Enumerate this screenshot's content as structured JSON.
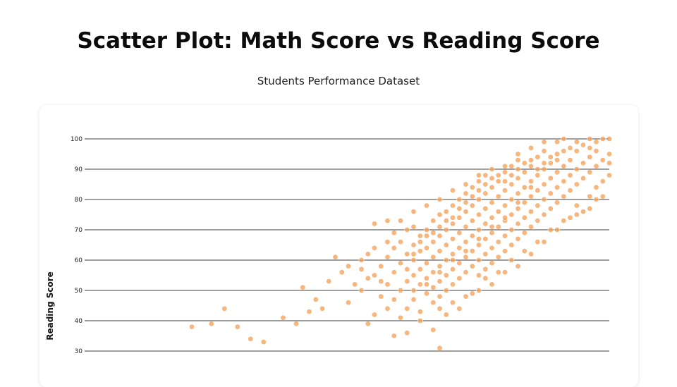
{
  "page": {
    "title": "Scatter Plot: Math Score vs Reading Score",
    "subtitle": "Students Performance Dataset"
  },
  "colors": {
    "point_fill": "#f4a259",
    "point_fill_dense": "#f08a2c",
    "grid": "#000000",
    "background": "#ffffff"
  },
  "chart_data": {
    "type": "scatter",
    "title": "Scatter Plot: Math Score vs Reading Score",
    "subtitle": "Students Performance Dataset",
    "xlabel": "",
    "ylabel": "Reading Score",
    "ylim": [
      30,
      100
    ],
    "yticks": [
      30,
      40,
      50,
      60,
      70,
      80,
      90,
      100
    ],
    "xlim": [
      20,
      100
    ],
    "grid": "horizontal",
    "points": [
      [
        36,
        38
      ],
      [
        39,
        39
      ],
      [
        41,
        44
      ],
      [
        43,
        38
      ],
      [
        45,
        34
      ],
      [
        47,
        33
      ],
      [
        50,
        41
      ],
      [
        52,
        39
      ],
      [
        53,
        51
      ],
      [
        54,
        43
      ],
      [
        55,
        47
      ],
      [
        56,
        44
      ],
      [
        57,
        53
      ],
      [
        58,
        61
      ],
      [
        59,
        56
      ],
      [
        60,
        46
      ],
      [
        60,
        58
      ],
      [
        61,
        52
      ],
      [
        62,
        50
      ],
      [
        62,
        60
      ],
      [
        63,
        39
      ],
      [
        63,
        62
      ],
      [
        64,
        42
      ],
      [
        64,
        55
      ],
      [
        64,
        64
      ],
      [
        65,
        48
      ],
      [
        65,
        58
      ],
      [
        66,
        44
      ],
      [
        66,
        52
      ],
      [
        66,
        61
      ],
      [
        67,
        47
      ],
      [
        67,
        56
      ],
      [
        67,
        64
      ],
      [
        68,
        41
      ],
      [
        68,
        50
      ],
      [
        68,
        59
      ],
      [
        68,
        66
      ],
      [
        69,
        44
      ],
      [
        69,
        53
      ],
      [
        69,
        62
      ],
      [
        69,
        70
      ],
      [
        70,
        47
      ],
      [
        70,
        55
      ],
      [
        70,
        60
      ],
      [
        70,
        65
      ],
      [
        70,
        71
      ],
      [
        71,
        43
      ],
      [
        71,
        52
      ],
      [
        71,
        57
      ],
      [
        71,
        63
      ],
      [
        71,
        68
      ],
      [
        72,
        49
      ],
      [
        72,
        54
      ],
      [
        72,
        59
      ],
      [
        72,
        64
      ],
      [
        72,
        70
      ],
      [
        73,
        46
      ],
      [
        73,
        51
      ],
      [
        73,
        56
      ],
      [
        73,
        61
      ],
      [
        73,
        66
      ],
      [
        73,
        73
      ],
      [
        74,
        48
      ],
      [
        74,
        53
      ],
      [
        74,
        58
      ],
      [
        74,
        63
      ],
      [
        74,
        68
      ],
      [
        74,
        75
      ],
      [
        75,
        50
      ],
      [
        75,
        55
      ],
      [
        75,
        60
      ],
      [
        75,
        65
      ],
      [
        75,
        70
      ],
      [
        75,
        76
      ],
      [
        76,
        52
      ],
      [
        76,
        57
      ],
      [
        76,
        62
      ],
      [
        76,
        67
      ],
      [
        76,
        72
      ],
      [
        76,
        78
      ],
      [
        77,
        54
      ],
      [
        77,
        59
      ],
      [
        77,
        64
      ],
      [
        77,
        69
      ],
      [
        77,
        74
      ],
      [
        77,
        80
      ],
      [
        78,
        56
      ],
      [
        78,
        61
      ],
      [
        78,
        66
      ],
      [
        78,
        71
      ],
      [
        78,
        76
      ],
      [
        78,
        82
      ],
      [
        79,
        58
      ],
      [
        79,
        63
      ],
      [
        79,
        68
      ],
      [
        79,
        73
      ],
      [
        79,
        78
      ],
      [
        79,
        84
      ],
      [
        80,
        55
      ],
      [
        80,
        60
      ],
      [
        80,
        65
      ],
      [
        80,
        70
      ],
      [
        80,
        75
      ],
      [
        80,
        80
      ],
      [
        80,
        86
      ],
      [
        81,
        57
      ],
      [
        81,
        62
      ],
      [
        81,
        67
      ],
      [
        81,
        72
      ],
      [
        81,
        77
      ],
      [
        81,
        82
      ],
      [
        81,
        88
      ],
      [
        82,
        59
      ],
      [
        82,
        64
      ],
      [
        82,
        69
      ],
      [
        82,
        74
      ],
      [
        82,
        79
      ],
      [
        82,
        84
      ],
      [
        82,
        90
      ],
      [
        83,
        61
      ],
      [
        83,
        66
      ],
      [
        83,
        71
      ],
      [
        83,
        76
      ],
      [
        83,
        81
      ],
      [
        83,
        86
      ],
      [
        84,
        63
      ],
      [
        84,
        68
      ],
      [
        84,
        73
      ],
      [
        84,
        78
      ],
      [
        84,
        83
      ],
      [
        84,
        89
      ],
      [
        85,
        65
      ],
      [
        85,
        70
      ],
      [
        85,
        75
      ],
      [
        85,
        80
      ],
      [
        85,
        85
      ],
      [
        85,
        91
      ],
      [
        86,
        67
      ],
      [
        86,
        72
      ],
      [
        86,
        77
      ],
      [
        86,
        82
      ],
      [
        86,
        87
      ],
      [
        86,
        93
      ],
      [
        87,
        69
      ],
      [
        87,
        74
      ],
      [
        87,
        79
      ],
      [
        87,
        84
      ],
      [
        87,
        89
      ],
      [
        88,
        71
      ],
      [
        88,
        76
      ],
      [
        88,
        81
      ],
      [
        88,
        86
      ],
      [
        88,
        91
      ],
      [
        89,
        73
      ],
      [
        89,
        78
      ],
      [
        89,
        83
      ],
      [
        89,
        88
      ],
      [
        89,
        94
      ],
      [
        90,
        75
      ],
      [
        90,
        80
      ],
      [
        90,
        85
      ],
      [
        90,
        90
      ],
      [
        90,
        96
      ],
      [
        91,
        77
      ],
      [
        91,
        82
      ],
      [
        91,
        87
      ],
      [
        91,
        92
      ],
      [
        92,
        79
      ],
      [
        92,
        84
      ],
      [
        92,
        89
      ],
      [
        92,
        95
      ],
      [
        93,
        81
      ],
      [
        93,
        86
      ],
      [
        93,
        91
      ],
      [
        93,
        100
      ],
      [
        94,
        83
      ],
      [
        94,
        88
      ],
      [
        94,
        93
      ],
      [
        95,
        78
      ],
      [
        95,
        85
      ],
      [
        95,
        90
      ],
      [
        95,
        99
      ],
      [
        96,
        87
      ],
      [
        96,
        92
      ],
      [
        97,
        81
      ],
      [
        97,
        89
      ],
      [
        97,
        94
      ],
      [
        97,
        100
      ],
      [
        98,
        84
      ],
      [
        98,
        91
      ],
      [
        98,
        96
      ],
      [
        99,
        86
      ],
      [
        99,
        93
      ],
      [
        99,
        100
      ],
      [
        100,
        88
      ],
      [
        100,
        95
      ],
      [
        100,
        100
      ],
      [
        100,
        92
      ],
      [
        64,
        72
      ],
      [
        66,
        73
      ],
      [
        70,
        76
      ],
      [
        72,
        78
      ],
      [
        74,
        80
      ],
      [
        76,
        83
      ],
      [
        78,
        85
      ],
      [
        80,
        88
      ],
      [
        84,
        91
      ],
      [
        86,
        95
      ],
      [
        88,
        97
      ],
      [
        90,
        99
      ],
      [
        92,
        99
      ],
      [
        74,
        44
      ],
      [
        76,
        46
      ],
      [
        78,
        48
      ],
      [
        80,
        50
      ],
      [
        82,
        52
      ],
      [
        84,
        56
      ],
      [
        86,
        58
      ],
      [
        88,
        62
      ],
      [
        90,
        66
      ],
      [
        92,
        70
      ],
      [
        94,
        74
      ],
      [
        96,
        76
      ],
      [
        98,
        80
      ],
      [
        73,
        37
      ],
      [
        71,
        40
      ],
      [
        69,
        36
      ],
      [
        67,
        35
      ],
      [
        75,
        42
      ],
      [
        77,
        44
      ],
      [
        79,
        49
      ],
      [
        81,
        54
      ],
      [
        83,
        56
      ],
      [
        85,
        60
      ],
      [
        87,
        63
      ],
      [
        89,
        66
      ],
      [
        91,
        70
      ],
      [
        93,
        73
      ],
      [
        95,
        75
      ],
      [
        97,
        77
      ],
      [
        99,
        81
      ],
      [
        62,
        57
      ],
      [
        63,
        54
      ],
      [
        65,
        53
      ],
      [
        66,
        66
      ],
      [
        67,
        69
      ],
      [
        68,
        73
      ],
      [
        69,
        57
      ],
      [
        70,
        62
      ],
      [
        71,
        66
      ],
      [
        72,
        68
      ],
      [
        73,
        69
      ],
      [
        74,
        71
      ],
      [
        75,
        73
      ],
      [
        76,
        74
      ],
      [
        77,
        77
      ],
      [
        78,
        79
      ],
      [
        79,
        81
      ],
      [
        80,
        83
      ],
      [
        81,
        85
      ],
      [
        82,
        87
      ],
      [
        83,
        88
      ],
      [
        84,
        86
      ],
      [
        85,
        88
      ],
      [
        86,
        90
      ],
      [
        87,
        92
      ],
      [
        88,
        93
      ],
      [
        89,
        90
      ],
      [
        90,
        92
      ],
      [
        91,
        94
      ],
      [
        92,
        93
      ],
      [
        93,
        96
      ],
      [
        94,
        97
      ],
      [
        95,
        96
      ],
      [
        96,
        98
      ],
      [
        97,
        97
      ],
      [
        98,
        99
      ],
      [
        74,
        31
      ],
      [
        70,
        50
      ],
      [
        72,
        52
      ],
      [
        74,
        56
      ],
      [
        76,
        60
      ],
      [
        78,
        63
      ],
      [
        80,
        67
      ],
      [
        82,
        71
      ],
      [
        84,
        74
      ],
      [
        86,
        79
      ],
      [
        88,
        84
      ]
    ]
  }
}
